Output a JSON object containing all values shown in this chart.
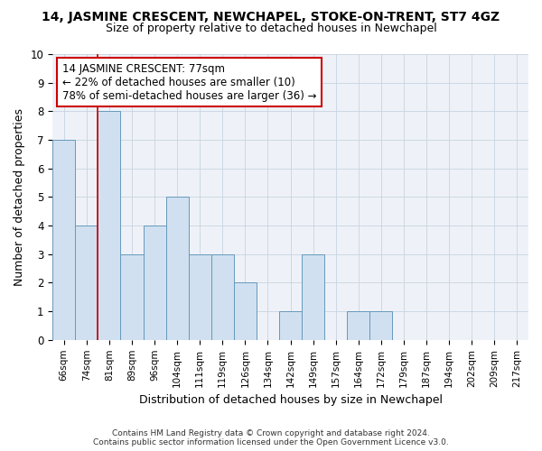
{
  "title": "14, JASMINE CRESCENT, NEWCHAPEL, STOKE-ON-TRENT, ST7 4GZ",
  "subtitle": "Size of property relative to detached houses in Newchapel",
  "xlabel": "Distribution of detached houses by size in Newchapel",
  "ylabel": "Number of detached properties",
  "bin_labels": [
    "66sqm",
    "74sqm",
    "81sqm",
    "89sqm",
    "96sqm",
    "104sqm",
    "111sqm",
    "119sqm",
    "126sqm",
    "134sqm",
    "142sqm",
    "149sqm",
    "157sqm",
    "164sqm",
    "172sqm",
    "179sqm",
    "187sqm",
    "194sqm",
    "202sqm",
    "209sqm",
    "217sqm"
  ],
  "bar_values": [
    7,
    4,
    8,
    3,
    4,
    5,
    3,
    3,
    2,
    0,
    1,
    3,
    0,
    1,
    1,
    0,
    0,
    0,
    0,
    0,
    0
  ],
  "bar_color": "#d0e0f0",
  "bar_edgecolor": "#6699bb",
  "vline_x": 1.5,
  "vline_color": "#cc0000",
  "ylim": [
    0,
    10
  ],
  "yticks": [
    0,
    1,
    2,
    3,
    4,
    5,
    6,
    7,
    8,
    9,
    10
  ],
  "annotation_text": "14 JASMINE CRESCENT: 77sqm\n← 22% of detached houses are smaller (10)\n78% of semi-detached houses are larger (36) →",
  "annotation_box_facecolor": "#ffffff",
  "annotation_box_edgecolor": "#cc0000",
  "footer_line1": "Contains HM Land Registry data © Crown copyright and database right 2024.",
  "footer_line2": "Contains public sector information licensed under the Open Government Licence v3.0.",
  "grid_color": "#c8d4e0",
  "background_color": "#eef2f8"
}
